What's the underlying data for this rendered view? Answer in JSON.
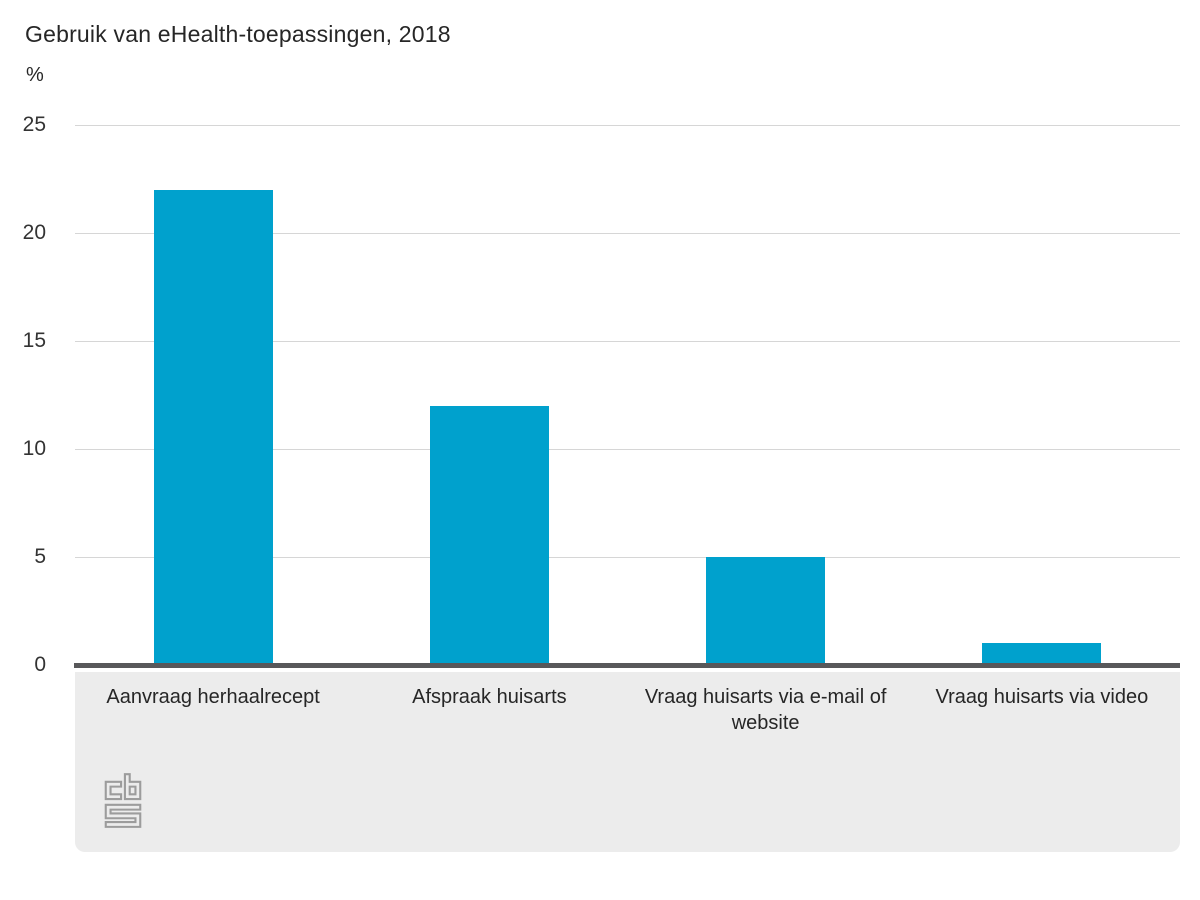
{
  "title": "Gebruik van eHealth-toepassingen, 2018",
  "unit_label": "%",
  "colors": {
    "bar": "#00a1cd",
    "axis_line": "#58585a",
    "gridline": "#d6d6d6",
    "panel_bg": "#ececec",
    "text": "#262626",
    "logo": "#9c9c9c"
  },
  "logo": {
    "name": "cbs-logo"
  },
  "chart_data": {
    "type": "bar",
    "categories": [
      "Aanvraag herhaalrecept",
      "Afspraak huisarts",
      "Vraag huisarts via e-mail of website",
      "Vraag huisarts via video"
    ],
    "values": [
      22,
      12,
      5,
      1
    ],
    "title": "Gebruik van eHealth-toepassingen, 2018",
    "xlabel": "",
    "ylabel": "%",
    "ylim": [
      0,
      25
    ],
    "yticks": [
      0,
      5,
      10,
      15,
      20,
      25
    ],
    "grid": true,
    "legend": false,
    "legend_position": "none"
  }
}
